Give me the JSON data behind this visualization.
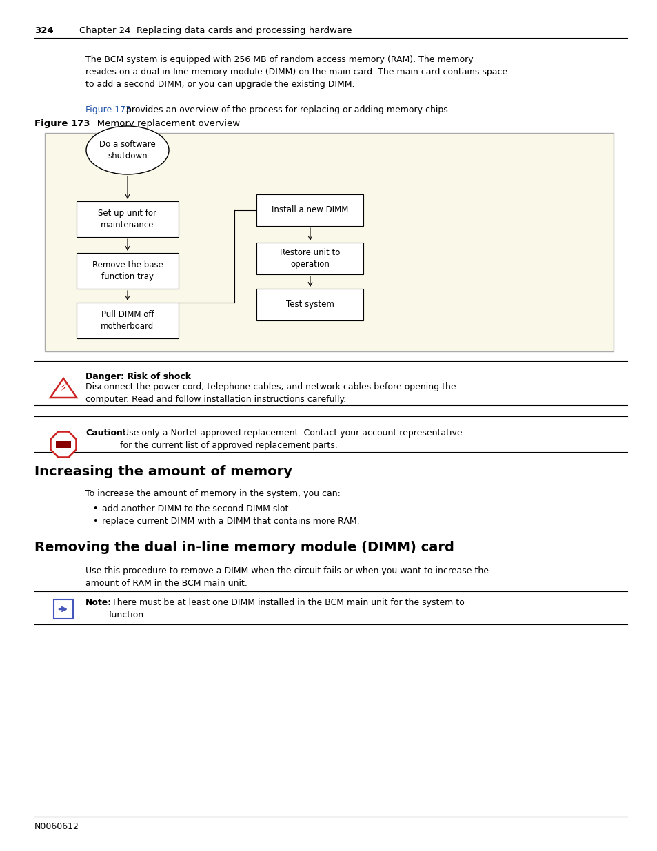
{
  "page_number": "324",
  "chapter_header": "Chapter 24  Replacing data cards and processing hardware",
  "para1": "The BCM system is equipped with 256 MB of random access memory (RAM). The memory\nresides on a dual in-line memory module (DIMM) on the main card. The main card contains space\nto add a second DIMM, or you can upgrade the existing DIMM.",
  "figure_ref": "Figure 173",
  "figure_ref_text": " provides an overview of the process for replacing or adding memory chips.",
  "figure_caption_bold": "Figure 173",
  "figure_caption_rest": "   Memory replacement overview",
  "diagram_bg": "#faf8e8",
  "danger_bold": "Danger: Risk of shock",
  "danger_text": "Disconnect the power cord, telephone cables, and network cables before opening the\ncomputer. Read and follow installation instructions carefully.",
  "caution_bold": "Caution:",
  "caution_text": " Use only a Nortel-approved replacement. Contact your account representative\nfor the current list of approved replacement parts.",
  "section1_title": "Increasing the amount of memory",
  "section1_para": "To increase the amount of memory in the system, you can:",
  "section1_bullets": [
    "add another DIMM to the second DIMM slot.",
    "replace current DIMM with a DIMM that contains more RAM."
  ],
  "section2_title": "Removing the dual in-line memory module (DIMM) card",
  "section2_para": "Use this procedure to remove a DIMM when the circuit fails or when you want to increase the\namount of RAM in the BCM main unit.",
  "note_bold": "Note:",
  "note_text": " There must be at least one DIMM installed in the BCM main unit for the system to\nfunction.",
  "footer_text": "N0060612",
  "text_color": "#000000",
  "link_color": "#2255aa",
  "danger_color": "#cc2222",
  "bg_color": "#ffffff"
}
